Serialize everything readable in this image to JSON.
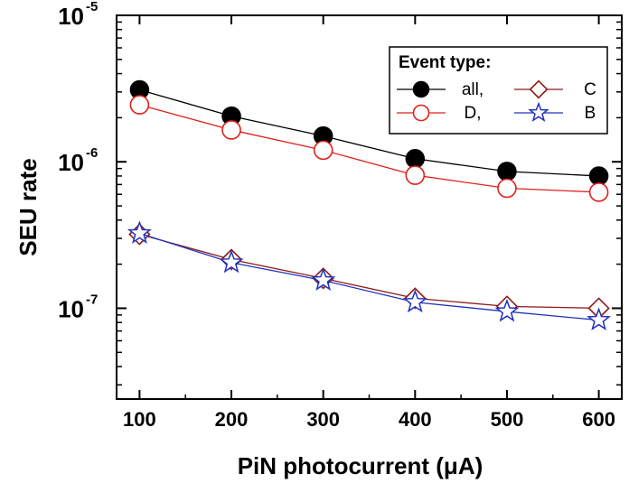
{
  "chart_data": {
    "type": "line",
    "xlabel": "PiN photocurrent (μA)",
    "ylabel": "SEU rate",
    "x": [
      100,
      200,
      300,
      400,
      500,
      600
    ],
    "xlim": [
      75,
      625
    ],
    "xticks": [
      "100",
      "200",
      "300",
      "400",
      "500",
      "600"
    ],
    "yscale": "log",
    "ylim": [
      2.4e-08,
      1e-05
    ],
    "yticks": [
      {
        "value": 1e-05,
        "base": "10",
        "exp": "-5"
      },
      {
        "value": 1e-06,
        "base": "10",
        "exp": "-6"
      },
      {
        "value": 1e-07,
        "base": "10",
        "exp": "-7"
      }
    ],
    "grid": false,
    "legend": {
      "title": "Event type:",
      "position": "top-right",
      "entries": [
        {
          "series": 0,
          "label": "all,"
        },
        {
          "series": 1,
          "label": "D,"
        },
        {
          "series": 2,
          "label": "C"
        },
        {
          "series": 3,
          "label": "B"
        }
      ]
    },
    "series": [
      {
        "name": "all,",
        "marker": "filled-circle",
        "color": "#000000",
        "values": [
          3.1e-06,
          2.05e-06,
          1.5e-06,
          1.05e-06,
          8.6e-07,
          8e-07
        ]
      },
      {
        "name": "D,",
        "marker": "open-circle",
        "color": "#e0201b",
        "values": [
          2.45e-06,
          1.65e-06,
          1.2e-06,
          8.1e-07,
          6.6e-07,
          6.2e-07
        ]
      },
      {
        "name": "C",
        "marker": "open-diamond",
        "color": "#8b1a1a",
        "values": [
          3.2e-07,
          2.15e-07,
          1.6e-07,
          1.17e-07,
          1.03e-07,
          1e-07
        ]
      },
      {
        "name": "B",
        "marker": "open-star",
        "color": "#2233bb",
        "values": [
          3.25e-07,
          2.05e-07,
          1.55e-07,
          1.1e-07,
          9.5e-08,
          8.3e-08
        ]
      }
    ]
  }
}
